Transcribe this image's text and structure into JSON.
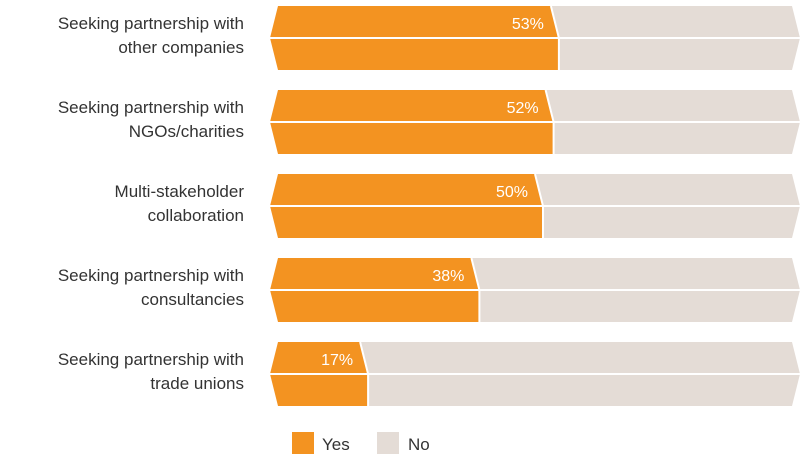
{
  "chart_data": {
    "type": "bar",
    "orientation": "horizontal",
    "stacked": true,
    "value_unit": "%",
    "categories": [
      "Seeking partnership with other companies",
      "Seeking partnership with NGOs/charities",
      "Multi-stakeholder collaboration",
      "Seeking partnership with consultancies",
      "Seeking partnership with trade unions"
    ],
    "category_label_lines": [
      [
        "Seeking partnership with",
        "other companies"
      ],
      [
        "Seeking partnership with",
        "NGOs/charities"
      ],
      [
        "Multi-stakeholder",
        "collaboration"
      ],
      [
        "Seeking partnership with",
        "consultancies"
      ],
      [
        "Seeking partnership with",
        "trade unions"
      ]
    ],
    "series": [
      {
        "name": "Yes",
        "color": "#F39321",
        "values": [
          53,
          52,
          50,
          38,
          17
        ]
      },
      {
        "name": "No",
        "color": "#E4DCD6",
        "values": [
          47,
          48,
          50,
          62,
          83
        ]
      }
    ],
    "data_labels": [
      "53%",
      "52%",
      "50%",
      "38%",
      "17%"
    ],
    "xlim": [
      0,
      100
    ],
    "legend": {
      "position": "bottom",
      "entries": [
        "Yes",
        "No"
      ]
    },
    "grid": false
  }
}
